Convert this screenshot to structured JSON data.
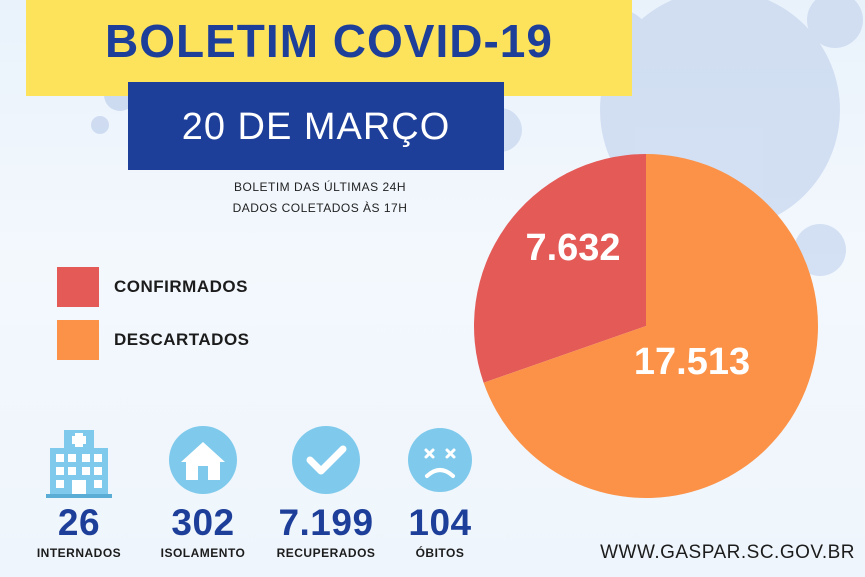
{
  "header": {
    "title": "BOLETIM COVID-19",
    "date": "20 DE MARÇO",
    "subtitle_line1": "BOLETIM DAS ÚLTIMAS 24H",
    "subtitle_line2": "DADOS COLETADOS ÀS  17H"
  },
  "colors": {
    "title_band": "#fde25b",
    "title_text": "#1d3f9a",
    "date_box": "#1e3f99",
    "confirmed": "#e45a57",
    "discarded": "#fb9247",
    "icon_circle": "#7fcaec"
  },
  "legend": [
    {
      "label": "CONFIRMADOS",
      "color": "#e45a57"
    },
    {
      "label": "DESCARTADOS",
      "color": "#fb9247"
    }
  ],
  "chart_data": {
    "type": "pie",
    "slices": [
      {
        "label": "CONFIRMADOS",
        "value": 7632,
        "display": "7.632",
        "color": "#e45a57"
      },
      {
        "label": "DESCARTADOS",
        "value": 17513,
        "display": "17.513",
        "color": "#fb9247"
      }
    ]
  },
  "stats": [
    {
      "value": "26",
      "label": "INTERNADOS",
      "icon": "hospital-icon"
    },
    {
      "value": "302",
      "label": "ISOLAMENTO",
      "icon": "house-icon"
    },
    {
      "value": "7.199",
      "label": "RECUPERADOS",
      "icon": "check-icon"
    },
    {
      "value": "104",
      "label": "ÓBITOS",
      "icon": "sad-face-icon"
    }
  ],
  "footer": {
    "website": "WWW.GASPAR.SC.GOV.BR"
  }
}
